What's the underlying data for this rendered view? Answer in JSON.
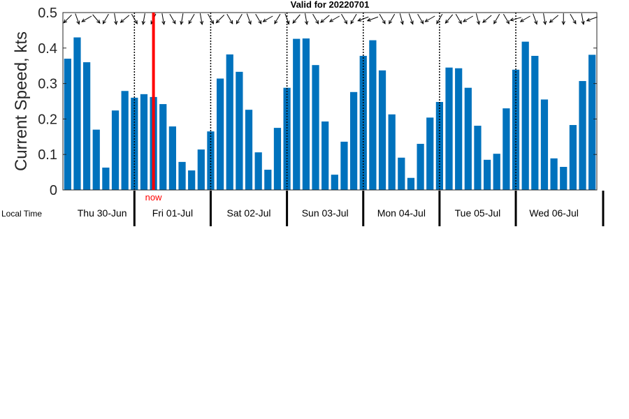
{
  "chart_data": {
    "type": "bar",
    "title": "Valid for 20220701",
    "ylabel": "Current Speed, kts",
    "xlabel": "Local Time",
    "ylim": [
      0,
      0.5
    ],
    "yticks": [
      "0",
      "0.1",
      "0.2",
      "0.3",
      "0.4",
      "0.5"
    ],
    "bar_color": "#0072BD",
    "now_color": "#FF0000",
    "now_label": "now",
    "bars_per_day": 8,
    "days": [
      "Thu 30-Jun",
      "Fri 01-Jul",
      "Sat 02-Jul",
      "Sun 03-Jul",
      "Mon 04-Jul",
      "Tue 05-Jul",
      "Wed 06-Jul"
    ],
    "values": [
      0.37,
      0.43,
      0.36,
      0.17,
      0.063,
      0.224,
      0.279,
      0.26,
      0.27,
      0.262,
      0.242,
      0.179,
      0.079,
      0.055,
      0.114,
      0.165,
      0.314,
      0.382,
      0.333,
      0.226,
      0.106,
      0.057,
      0.175,
      0.288,
      0.426,
      0.427,
      0.352,
      0.193,
      0.043,
      0.136,
      0.276,
      0.378,
      0.422,
      0.337,
      0.213,
      0.091,
      0.034,
      0.13,
      0.204,
      0.248,
      0.345,
      0.343,
      0.288,
      0.181,
      0.085,
      0.102,
      0.23,
      0.339,
      0.418,
      0.378,
      0.255,
      0.089,
      0.065,
      0.183,
      0.307,
      0.381
    ],
    "direction_deg": [
      135,
      70,
      150,
      50,
      120,
      80,
      140,
      60,
      100,
      115,
      80,
      60,
      100,
      120,
      80,
      60,
      135,
      60,
      120,
      70,
      60,
      150,
      120,
      70,
      130,
      80,
      60,
      140,
      150,
      60,
      120,
      160,
      160,
      60,
      120,
      75,
      70,
      60,
      150,
      120,
      130,
      60,
      150,
      75,
      140,
      120,
      60,
      165,
      150,
      70,
      80,
      140,
      90,
      60,
      80,
      160
    ],
    "now_position": 9.5,
    "grid": false
  }
}
